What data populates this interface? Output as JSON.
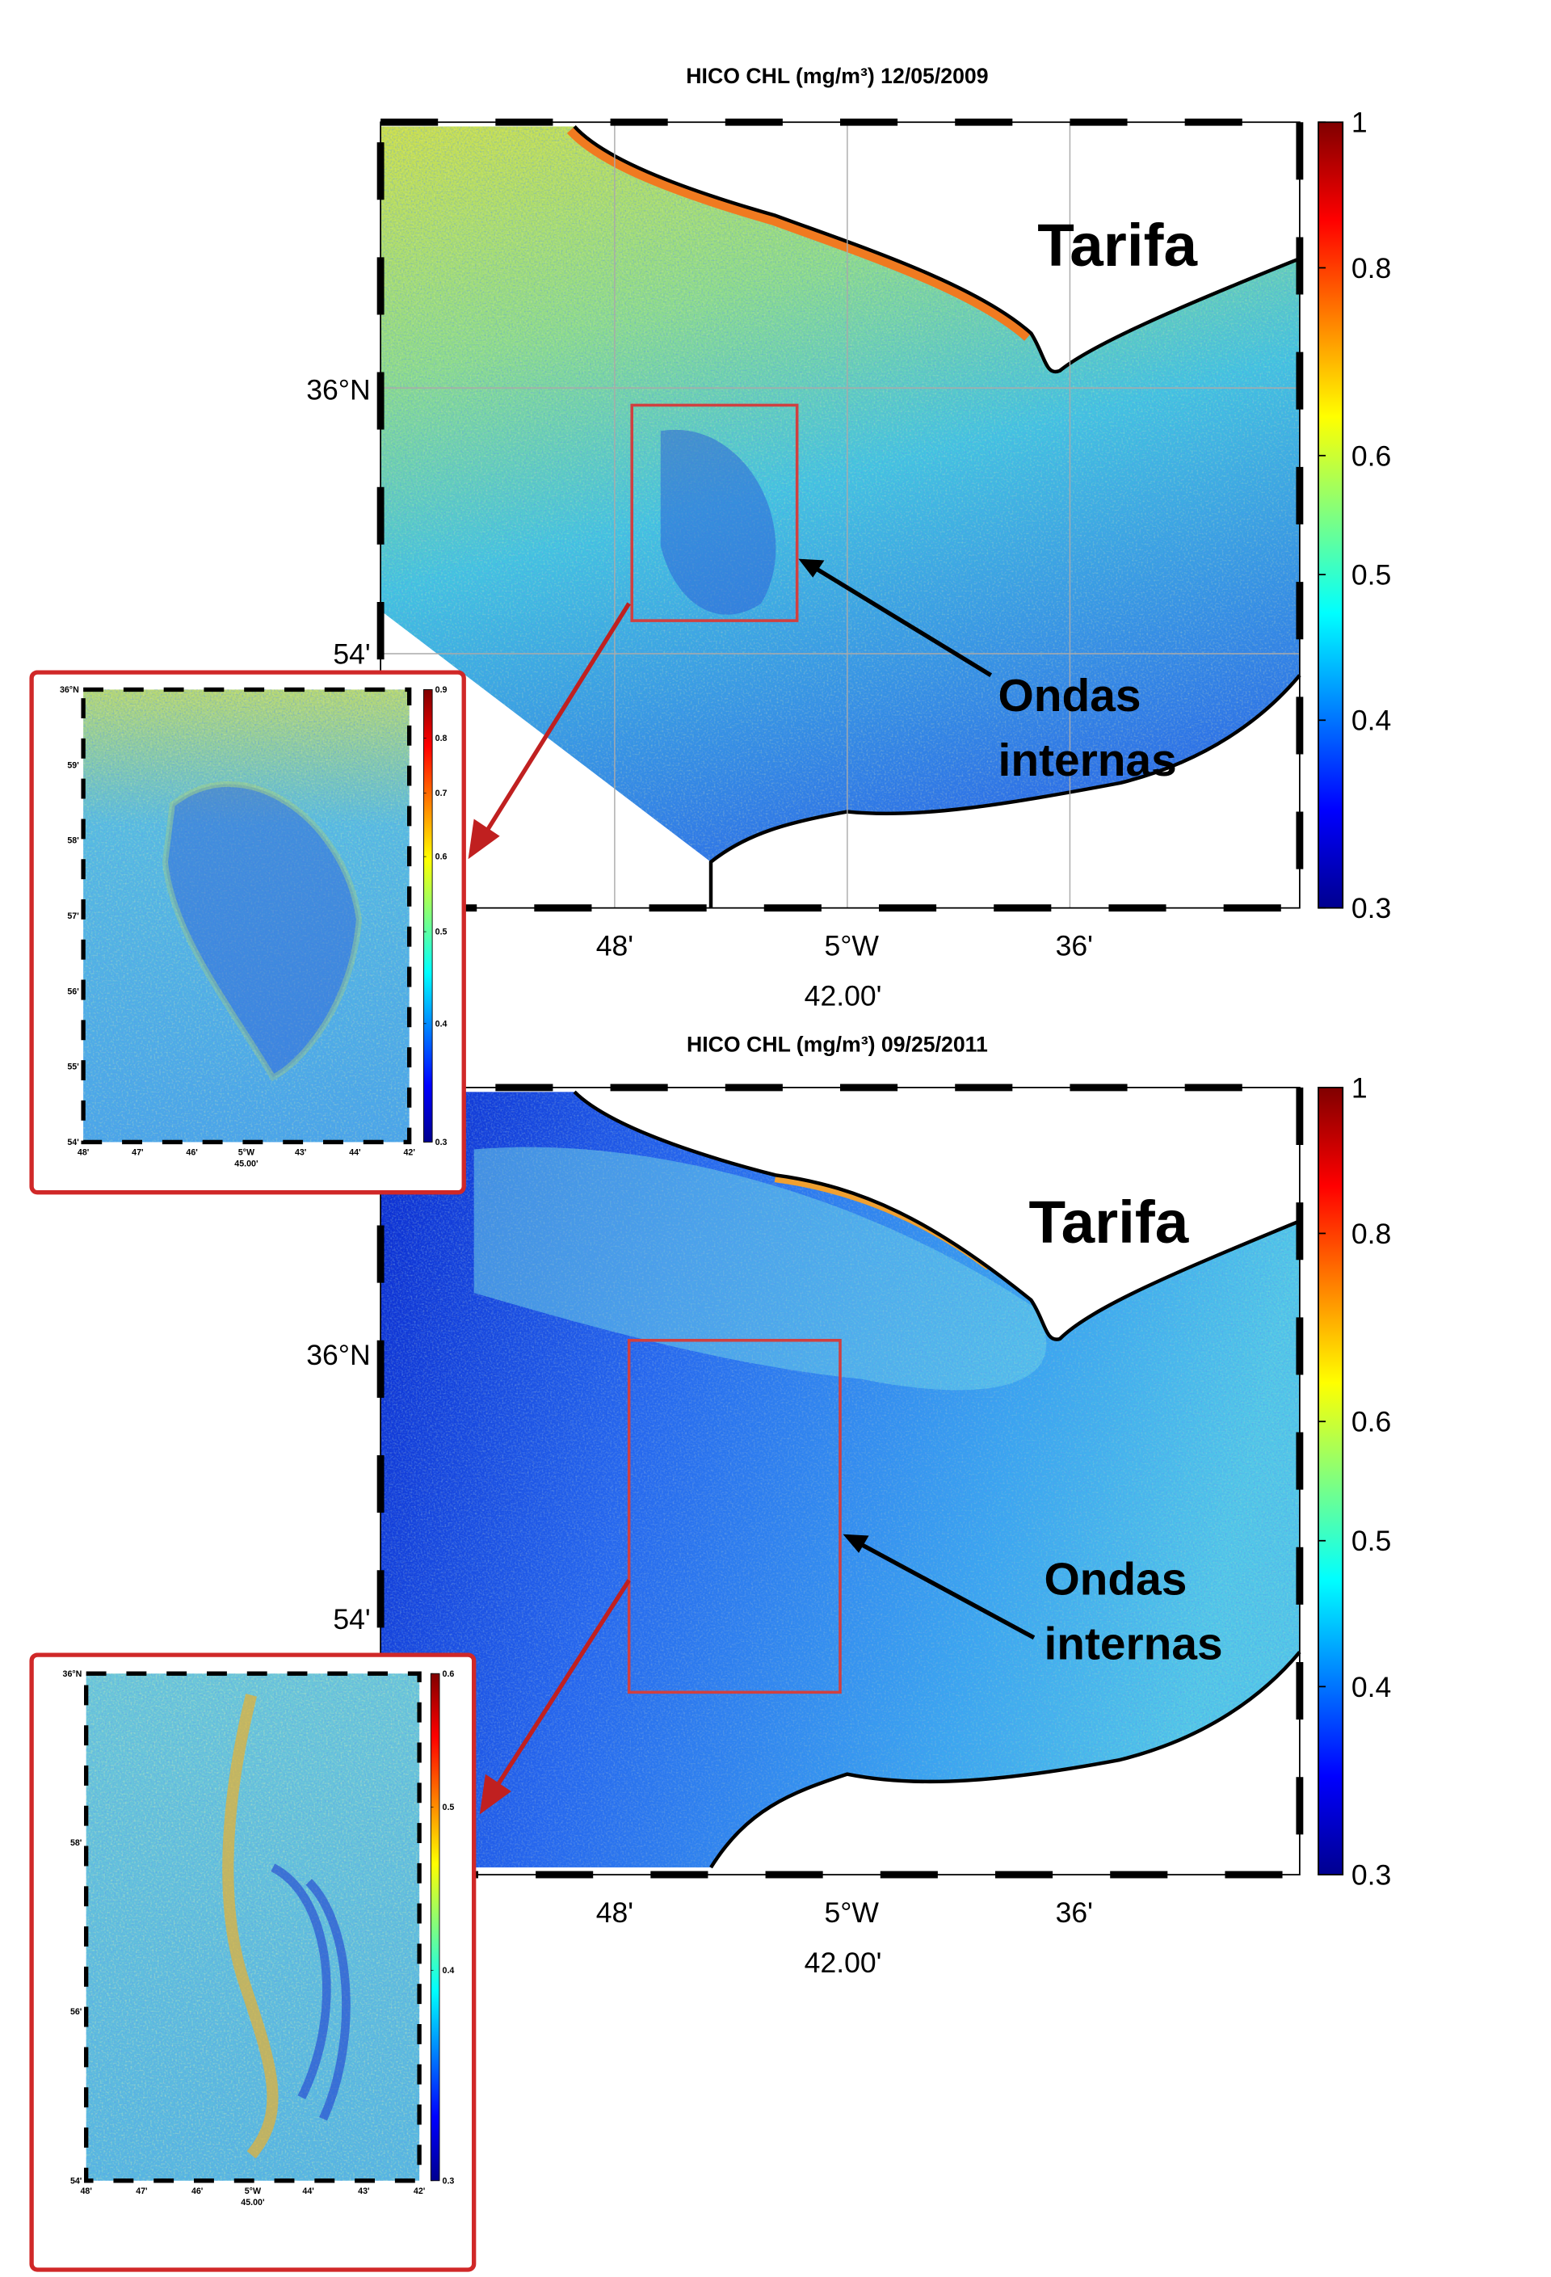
{
  "panels": [
    {
      "title": "HICO CHL (mg/m³) 12/05/2009",
      "place": "Tarifa",
      "annotation": [
        "Ondas",
        "internas"
      ],
      "y_labels": [
        "36°N",
        "54'"
      ],
      "x_labels": [
        "48'",
        "5°W",
        "36'"
      ],
      "x_sublabel": "42.00'",
      "colorbar": {
        "lim": [
          0.3,
          1
        ],
        "scale": "log",
        "ticks": [
          0.3,
          0.4,
          0.5,
          0.6,
          0.8,
          1
        ]
      },
      "inset": {
        "y_labels": [
          "36°N",
          "59'",
          "58'",
          "57'",
          "56'",
          "55'",
          "54'"
        ],
        "x_labels": [
          "48'",
          "47'",
          "46'",
          "5°W",
          "43'",
          "44'",
          "42'"
        ],
        "x_sublabel": "45.00'",
        "colorbar": {
          "lim": [
            0.3,
            0.9
          ],
          "scale": "log",
          "ticks": [
            0.3,
            0.4,
            0.5,
            0.6,
            0.7,
            0.8,
            0.9
          ]
        }
      }
    },
    {
      "title": "HICO CHL (mg/m³) 09/25/2011",
      "place": "Tarifa",
      "annotation": [
        "Ondas",
        "internas"
      ],
      "y_labels": [
        "36°N",
        "54'"
      ],
      "x_labels": [
        "48'",
        "5°W",
        "36'"
      ],
      "x_sublabel": "42.00'",
      "colorbar": {
        "lim": [
          0.3,
          1
        ],
        "scale": "log",
        "ticks": [
          0.3,
          0.4,
          0.5,
          0.6,
          0.8,
          1
        ]
      },
      "inset": {
        "y_labels": [
          "36°N",
          "58'",
          "56'",
          "54'"
        ],
        "x_labels": [
          "48'",
          "47'",
          "46'",
          "5°W",
          "44'",
          "43'",
          "42'"
        ],
        "x_sublabel": "45.00'",
        "colorbar": {
          "lim": [
            0.3,
            0.6
          ],
          "scale": "log",
          "ticks": [
            0.3,
            0.4,
            0.5,
            0.6
          ]
        }
      }
    }
  ]
}
